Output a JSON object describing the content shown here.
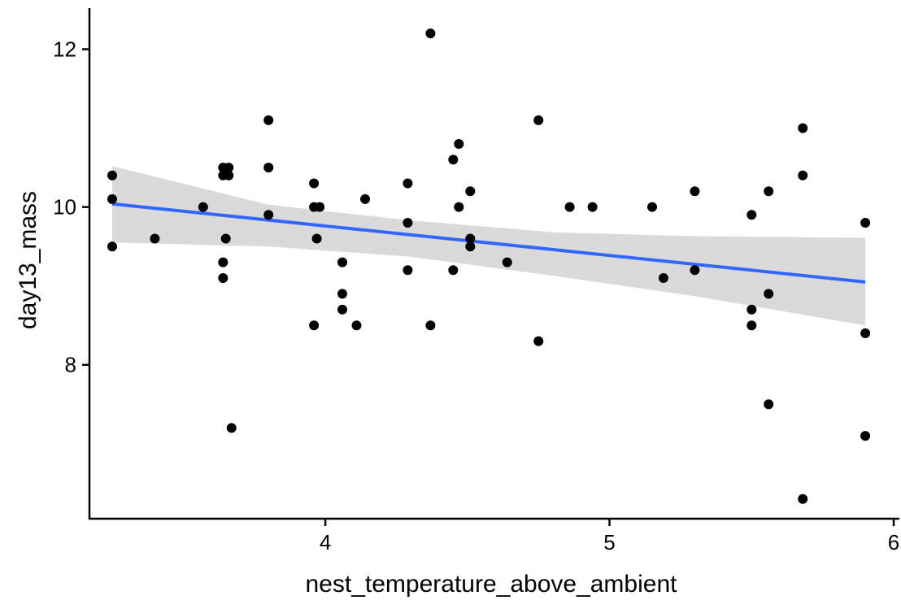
{
  "chart_data": {
    "type": "scatter",
    "xlabel": "nest_temperature_above_ambient",
    "ylabel": "day13_mass",
    "xlim": [
      3.17,
      6.02
    ],
    "ylim": [
      6.05,
      12.5
    ],
    "xticks": [
      4,
      5,
      6
    ],
    "yticks": [
      8,
      10,
      12
    ],
    "grid": false,
    "colors": {
      "points": "#000000",
      "fit_line": "#3366ff",
      "ribbon": "#d3d3d3"
    },
    "points": [
      {
        "x": 3.25,
        "y": 10.4
      },
      {
        "x": 3.25,
        "y": 10.1
      },
      {
        "x": 3.25,
        "y": 9.5
      },
      {
        "x": 3.4,
        "y": 9.6
      },
      {
        "x": 3.57,
        "y": 10.0
      },
      {
        "x": 3.64,
        "y": 10.5
      },
      {
        "x": 3.66,
        "y": 10.5
      },
      {
        "x": 3.64,
        "y": 10.4
      },
      {
        "x": 3.66,
        "y": 10.4
      },
      {
        "x": 3.65,
        "y": 9.6
      },
      {
        "x": 3.64,
        "y": 9.3
      },
      {
        "x": 3.64,
        "y": 9.1
      },
      {
        "x": 3.67,
        "y": 7.2
      },
      {
        "x": 3.8,
        "y": 11.1
      },
      {
        "x": 3.8,
        "y": 10.5
      },
      {
        "x": 3.8,
        "y": 9.9
      },
      {
        "x": 3.96,
        "y": 10.3
      },
      {
        "x": 3.96,
        "y": 10.0
      },
      {
        "x": 3.98,
        "y": 10.0
      },
      {
        "x": 3.97,
        "y": 9.6
      },
      {
        "x": 3.96,
        "y": 8.5
      },
      {
        "x": 4.06,
        "y": 9.3
      },
      {
        "x": 4.06,
        "y": 8.9
      },
      {
        "x": 4.06,
        "y": 8.7
      },
      {
        "x": 4.11,
        "y": 8.5
      },
      {
        "x": 4.14,
        "y": 10.1
      },
      {
        "x": 4.29,
        "y": 10.3
      },
      {
        "x": 4.29,
        "y": 9.8
      },
      {
        "x": 4.29,
        "y": 9.2
      },
      {
        "x": 4.37,
        "y": 12.2
      },
      {
        "x": 4.37,
        "y": 8.5
      },
      {
        "x": 4.45,
        "y": 10.6
      },
      {
        "x": 4.45,
        "y": 9.2
      },
      {
        "x": 4.47,
        "y": 10.8
      },
      {
        "x": 4.47,
        "y": 10.0
      },
      {
        "x": 4.51,
        "y": 10.2
      },
      {
        "x": 4.51,
        "y": 9.6
      },
      {
        "x": 4.51,
        "y": 9.5
      },
      {
        "x": 4.64,
        "y": 9.3
      },
      {
        "x": 4.75,
        "y": 11.1
      },
      {
        "x": 4.75,
        "y": 8.3
      },
      {
        "x": 4.86,
        "y": 10.0
      },
      {
        "x": 4.94,
        "y": 10.0
      },
      {
        "x": 5.15,
        "y": 10.0
      },
      {
        "x": 5.19,
        "y": 9.1
      },
      {
        "x": 5.3,
        "y": 10.2
      },
      {
        "x": 5.3,
        "y": 9.2
      },
      {
        "x": 5.5,
        "y": 9.9
      },
      {
        "x": 5.5,
        "y": 8.7
      },
      {
        "x": 5.5,
        "y": 8.5
      },
      {
        "x": 5.56,
        "y": 10.2
      },
      {
        "x": 5.56,
        "y": 8.9
      },
      {
        "x": 5.56,
        "y": 7.5
      },
      {
        "x": 5.68,
        "y": 11.0
      },
      {
        "x": 5.68,
        "y": 10.4
      },
      {
        "x": 5.68,
        "y": 6.3
      },
      {
        "x": 5.9,
        "y": 9.8
      },
      {
        "x": 5.9,
        "y": 8.4
      },
      {
        "x": 5.9,
        "y": 7.1
      }
    ],
    "fit": {
      "method": "linear",
      "x": [
        3.25,
        5.9
      ],
      "y": [
        10.04,
        9.05
      ],
      "ribbon_x": [
        3.25,
        3.8,
        4.3,
        4.8,
        5.3,
        5.9
      ],
      "ribbon_lower": [
        9.55,
        9.5,
        9.37,
        9.13,
        8.87,
        8.5
      ],
      "ribbon_upper": [
        10.52,
        10.03,
        9.83,
        9.68,
        9.63,
        9.61
      ]
    }
  }
}
